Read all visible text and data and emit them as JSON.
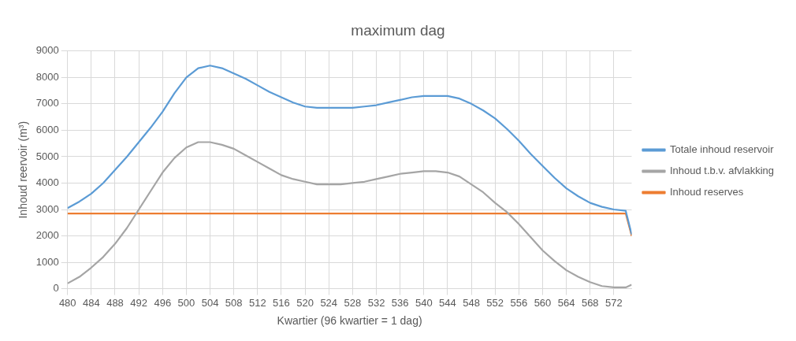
{
  "chart_data": {
    "type": "line",
    "title": "maximum dag",
    "xlabel": "Kwartier (96 kwartier = 1 dag)",
    "ylabel": "Inhoud reervoir (m³)",
    "xlim": [
      480,
      575
    ],
    "xticks": [
      480,
      484,
      488,
      492,
      496,
      500,
      504,
      508,
      512,
      516,
      520,
      524,
      528,
      532,
      536,
      540,
      544,
      548,
      552,
      556,
      560,
      564,
      568,
      572
    ],
    "ylim": [
      0,
      9000
    ],
    "yticks": [
      0,
      1000,
      2000,
      3000,
      4000,
      5000,
      6000,
      7000,
      8000,
      9000
    ],
    "grid": true,
    "legend": "right",
    "marker": "none",
    "line_style": "solid",
    "series": [
      {
        "name": "Totale inhoud reservoir",
        "color": "#5b9bd5",
        "x": [
          480,
          482,
          484,
          486,
          488,
          490,
          492,
          494,
          496,
          498,
          500,
          502,
          504,
          506,
          508,
          510,
          512,
          514,
          516,
          518,
          520,
          522,
          524,
          526,
          528,
          530,
          532,
          534,
          536,
          538,
          540,
          542,
          544,
          546,
          548,
          550,
          552,
          554,
          556,
          558,
          560,
          562,
          564,
          566,
          568,
          570,
          572,
          574,
          575
        ],
        "values": [
          3050,
          3300,
          3600,
          4000,
          4500,
          5000,
          5550,
          6100,
          6700,
          7400,
          8000,
          8350,
          8450,
          8350,
          8150,
          7950,
          7700,
          7450,
          7250,
          7050,
          6900,
          6850,
          6850,
          6850,
          6850,
          6900,
          6950,
          7050,
          7150,
          7250,
          7300,
          7300,
          7300,
          7200,
          7000,
          6750,
          6450,
          6050,
          5600,
          5100,
          4650,
          4200,
          3800,
          3500,
          3250,
          3100,
          3000,
          2950,
          2050
        ]
      },
      {
        "name": "Inhoud t.b.v. afvlakking",
        "color": "#a5a5a5",
        "x": [
          480,
          482,
          484,
          486,
          488,
          490,
          492,
          494,
          496,
          498,
          500,
          502,
          504,
          506,
          508,
          510,
          512,
          514,
          516,
          518,
          520,
          522,
          524,
          526,
          528,
          530,
          532,
          534,
          536,
          538,
          540,
          542,
          544,
          546,
          548,
          550,
          552,
          554,
          556,
          558,
          560,
          562,
          564,
          566,
          568,
          570,
          572,
          574,
          575
        ],
        "values": [
          200,
          450,
          800,
          1200,
          1700,
          2300,
          3000,
          3700,
          4400,
          4950,
          5350,
          5550,
          5550,
          5450,
          5300,
          5050,
          4800,
          4550,
          4300,
          4150,
          4050,
          3950,
          3950,
          3950,
          4000,
          4050,
          4150,
          4250,
          4350,
          4400,
          4450,
          4450,
          4400,
          4250,
          3950,
          3650,
          3250,
          2900,
          2450,
          1950,
          1450,
          1050,
          700,
          450,
          250,
          100,
          50,
          50,
          150
        ]
      },
      {
        "name": "Inhoud reserves",
        "color": "#ed7d31",
        "x": [
          480,
          574,
          575
        ],
        "values": [
          2850,
          2850,
          2000
        ]
      }
    ]
  }
}
